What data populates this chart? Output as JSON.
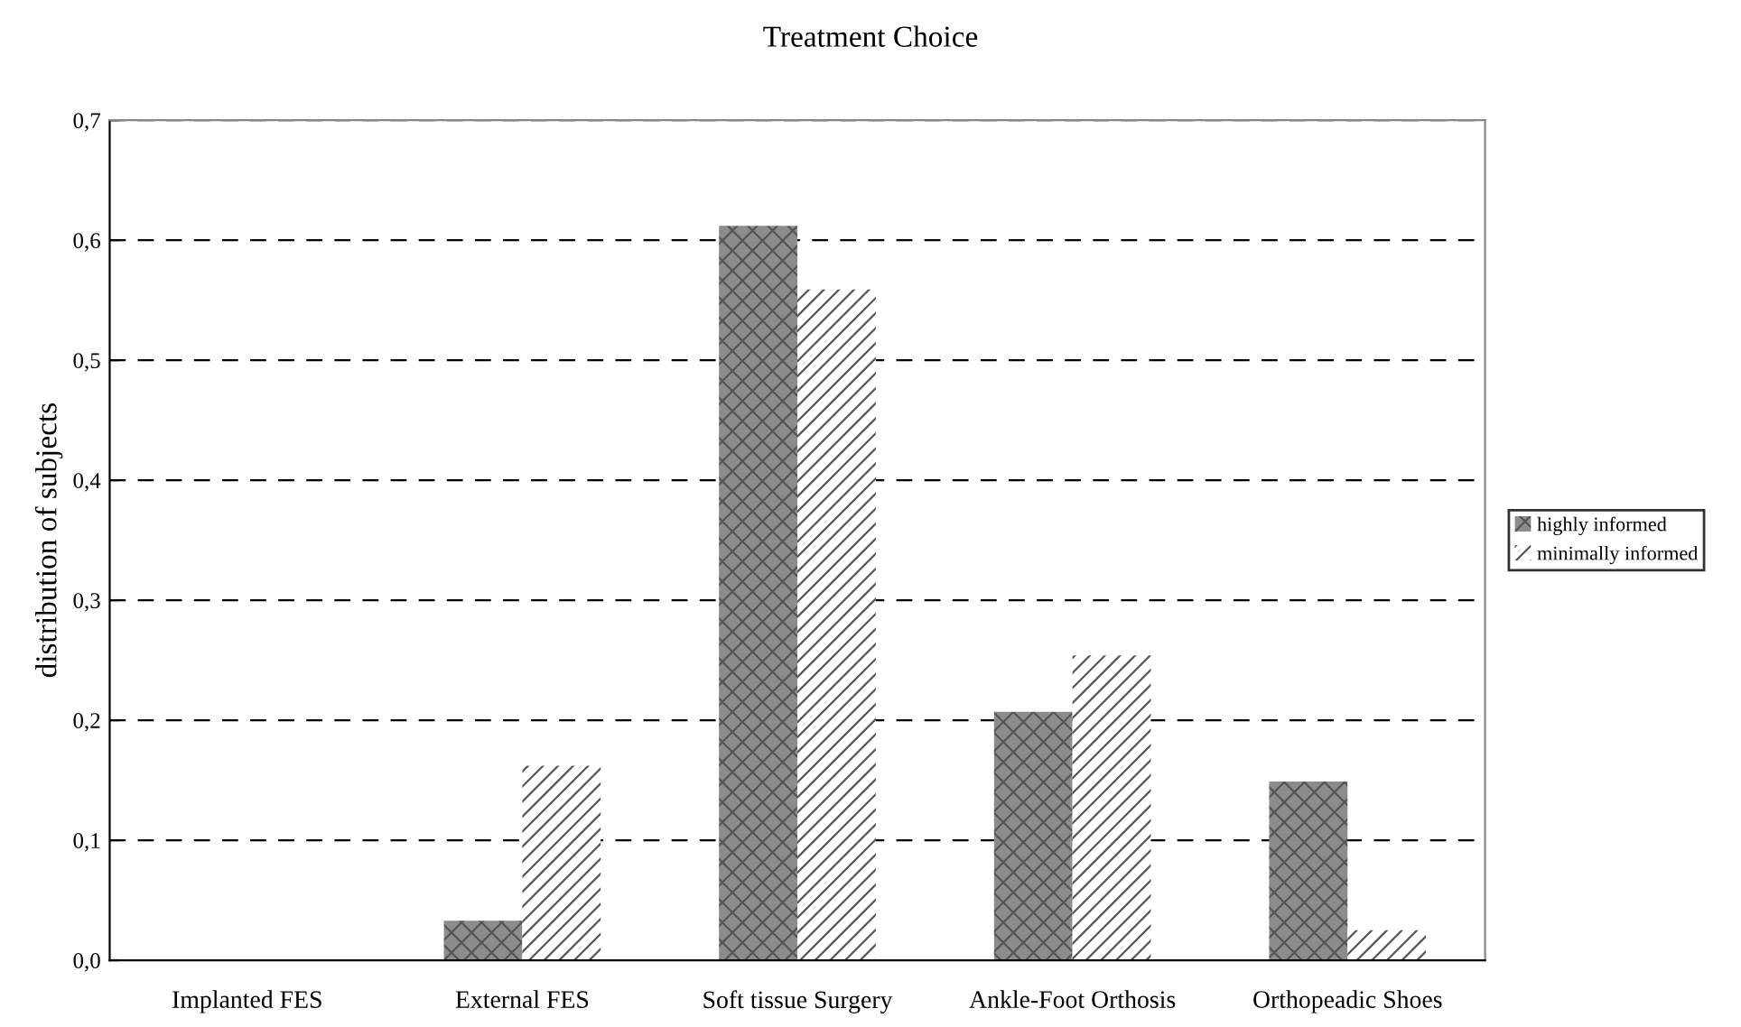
{
  "chart_data": {
    "type": "bar",
    "title": "Treatment Choice",
    "ylabel": "distribution of subjects",
    "categories": [
      "Implanted FES",
      "External FES",
      "Soft tissue Surgery",
      "Ankle-Foot Orthosis",
      "Orthopeadic Shoes"
    ],
    "series": [
      {
        "name": "highly informed",
        "color": "#8c8c8c",
        "values": [
          0,
          0.033,
          0.612,
          0.207,
          0.149
        ]
      },
      {
        "name": "minimally informed",
        "color": "#ffffff",
        "values": [
          0,
          0.162,
          0.559,
          0.254,
          0.025
        ]
      }
    ],
    "ylim": [
      0,
      0.7
    ],
    "yticks": [
      {
        "value": 0,
        "label": "0,0"
      },
      {
        "value": 0.1,
        "label": "0,1"
      },
      {
        "value": 0.2,
        "label": "0,2"
      },
      {
        "value": 0.3,
        "label": "0,3"
      },
      {
        "value": 0.4,
        "label": "0,4"
      },
      {
        "value": 0.5,
        "label": "0,5"
      },
      {
        "value": 0.6,
        "label": "0,6"
      },
      {
        "value": 0.7,
        "label": "0,7"
      }
    ],
    "grid": "y",
    "legend": "right"
  }
}
